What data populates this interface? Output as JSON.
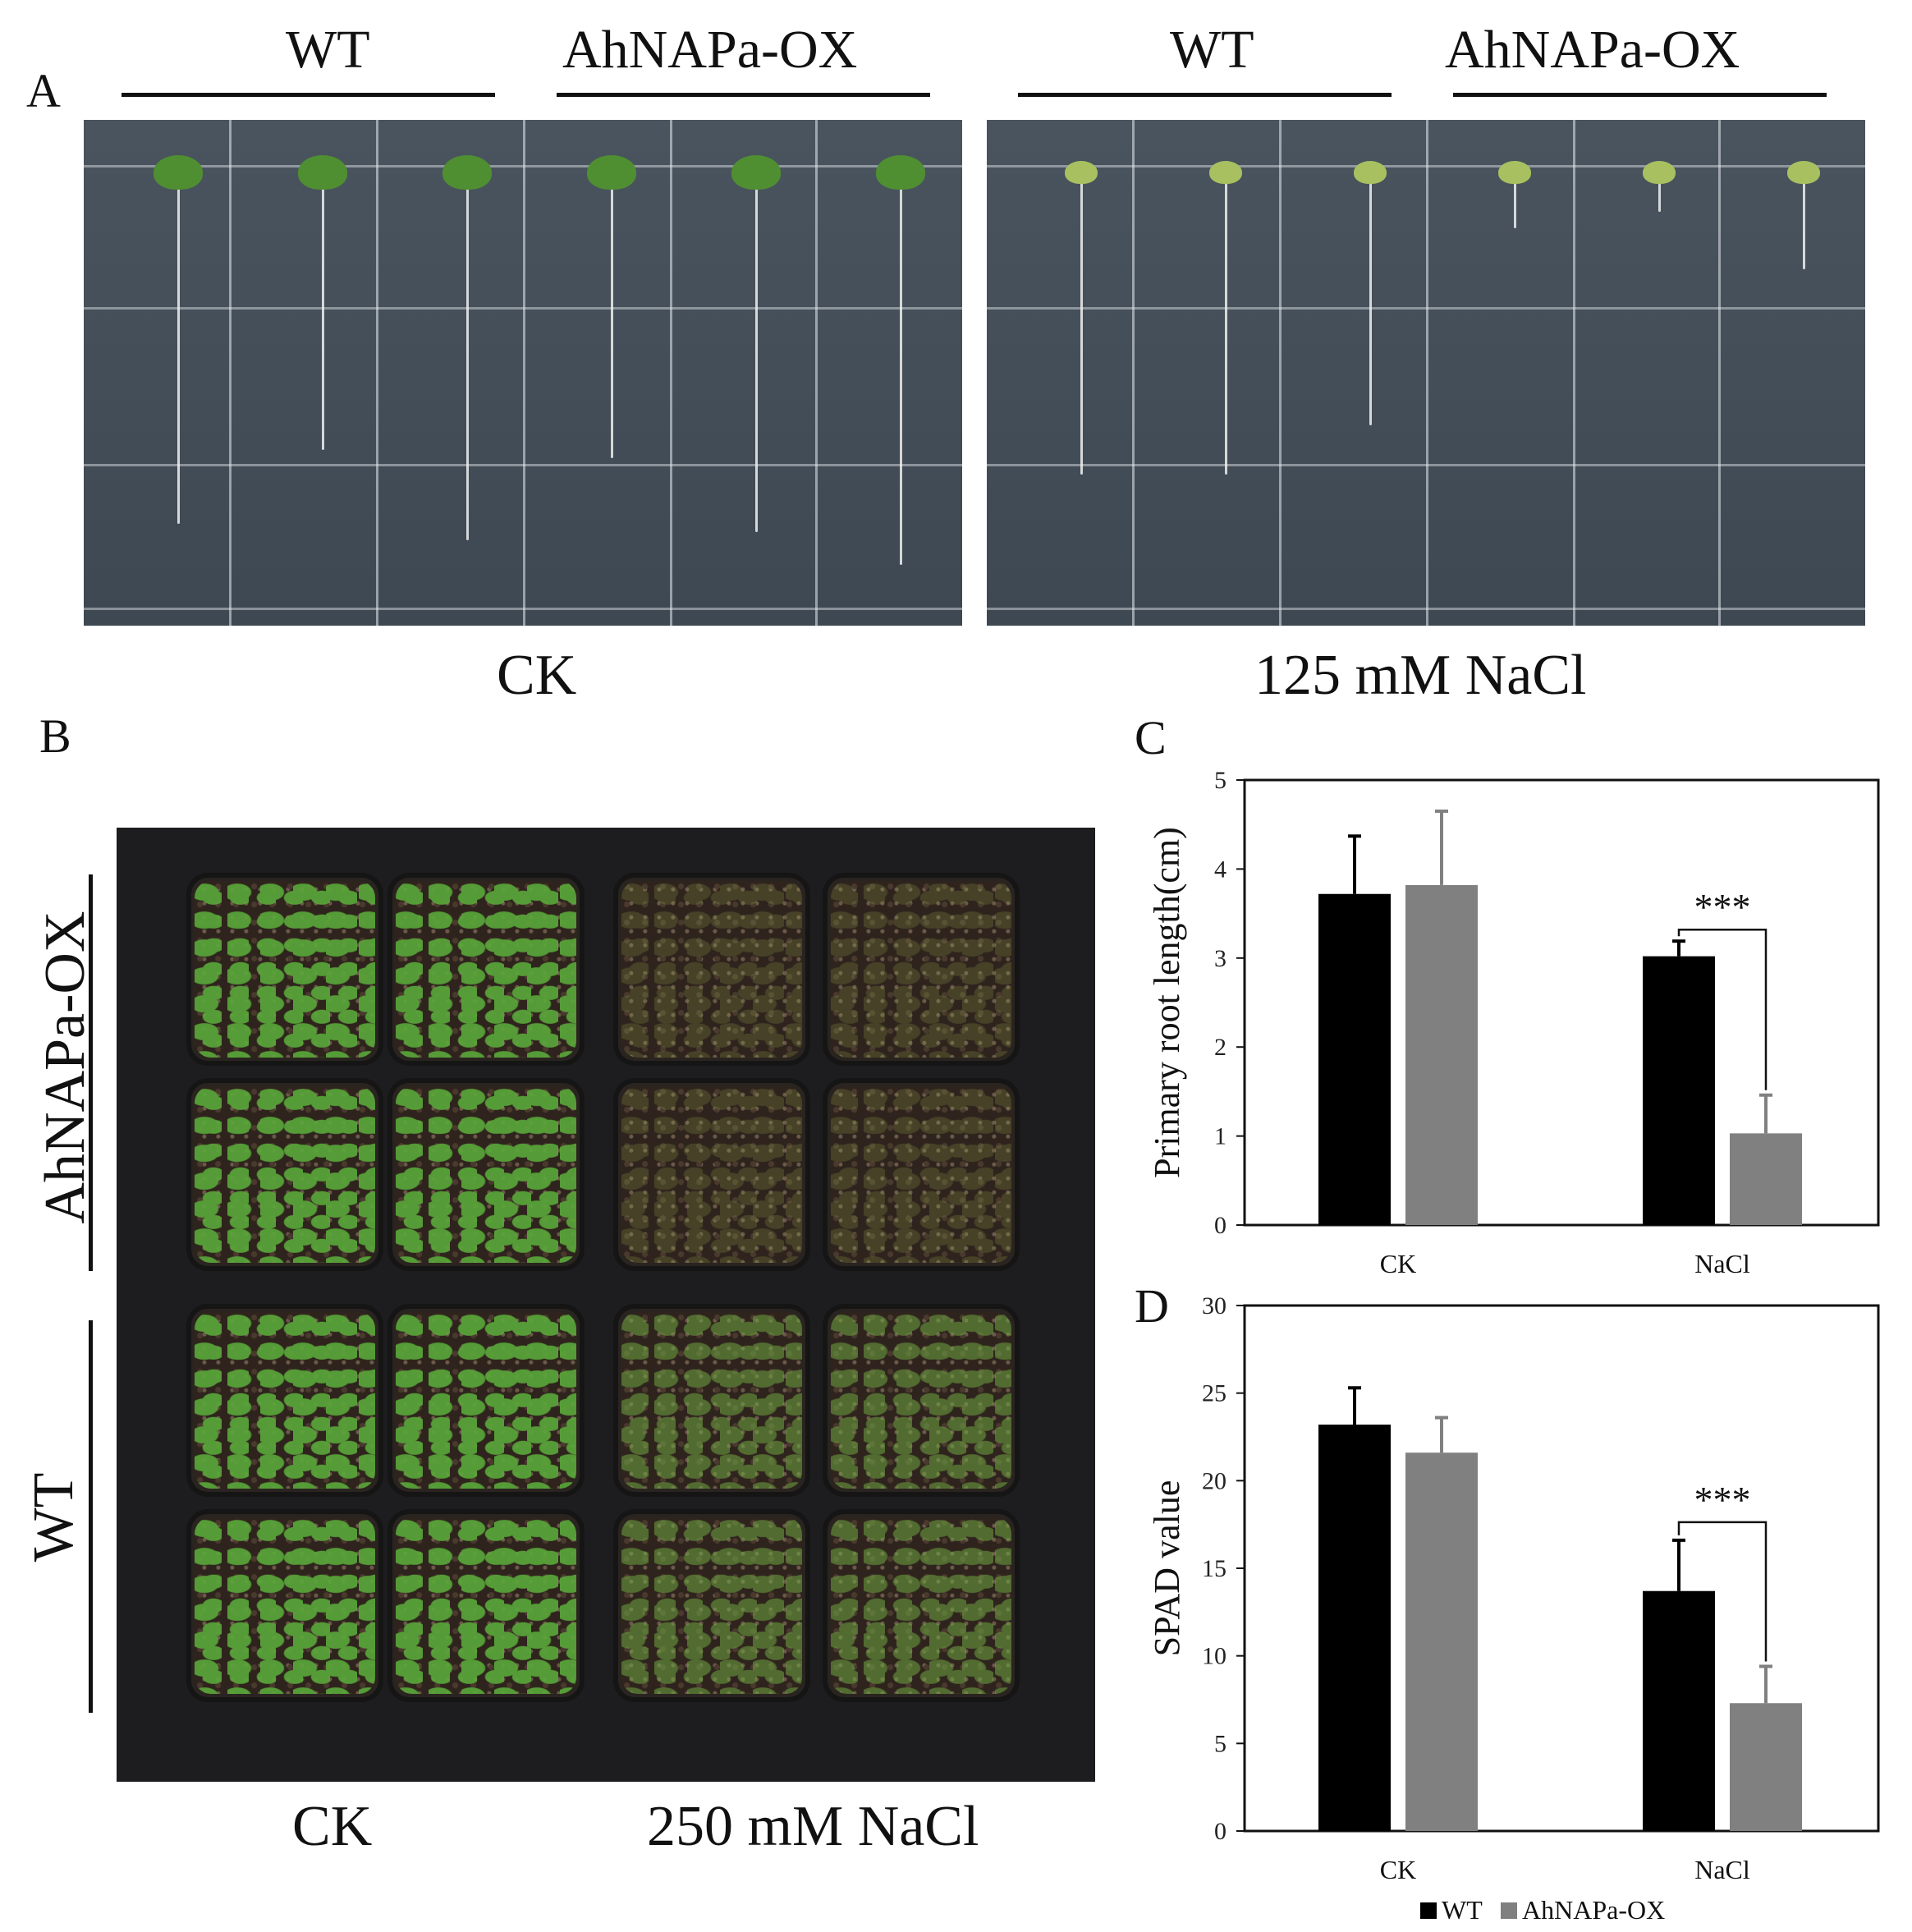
{
  "panels": {
    "a": {
      "letter": "A",
      "left_group": {
        "genotype_1": "WT",
        "genotype_2": "AhNAPa-OX",
        "condition": "CK"
      },
      "right_group": {
        "genotype_1": "WT",
        "genotype_2": "AhNAPa-OX",
        "condition": "125 mM NaCl"
      }
    },
    "b": {
      "letter": "B",
      "row_label_top": "AhNAPa-OX",
      "row_label_bottom": "WT",
      "col_label_left": "CK",
      "col_label_right": "250 mM NaCl"
    },
    "c": {
      "letter": "C"
    },
    "d": {
      "letter": "D"
    }
  },
  "colors": {
    "wt": "#000000",
    "ox": "#808080",
    "photo_a_bg": "#4a545e",
    "photo_b_bg": "#1d1d1f",
    "healthy_plant": "#5aa83a",
    "stressed_plant": "#8a9a48"
  },
  "chart_data": [
    {
      "type": "bar",
      "panel": "C",
      "categories": [
        "CK",
        "NaCl"
      ],
      "series": [
        {
          "name": "WT",
          "values": [
            3.72,
            3.02
          ],
          "errors": [
            0.65,
            0.17
          ]
        },
        {
          "name": "AhNAPa-OX",
          "values": [
            3.82,
            1.03
          ],
          "errors": [
            0.83,
            0.43
          ]
        }
      ],
      "ylabel": "Primary root length(cm)",
      "ylim": [
        0,
        5
      ],
      "yticks": [
        "0",
        "1",
        "2",
        "3",
        "4",
        "5"
      ],
      "significance": [
        {
          "category": "NaCl",
          "label": "***"
        }
      ],
      "grid": false
    },
    {
      "type": "bar",
      "panel": "D",
      "categories": [
        "CK",
        "NaCl"
      ],
      "series": [
        {
          "name": "WT",
          "values": [
            23.2,
            13.7
          ],
          "errors": [
            2.1,
            2.9
          ]
        },
        {
          "name": "AhNAPa-OX",
          "values": [
            21.6,
            7.3
          ],
          "errors": [
            2.0,
            2.1
          ]
        }
      ],
      "ylabel": "SPAD value",
      "ylim": [
        0,
        30
      ],
      "yticks": [
        "0",
        "5",
        "10",
        "15",
        "20",
        "25",
        "30"
      ],
      "significance": [
        {
          "category": "NaCl",
          "label": "***"
        }
      ],
      "legend": [
        "WT",
        "AhNAPa-OX"
      ],
      "legend_position": "bottom",
      "grid": false
    }
  ]
}
